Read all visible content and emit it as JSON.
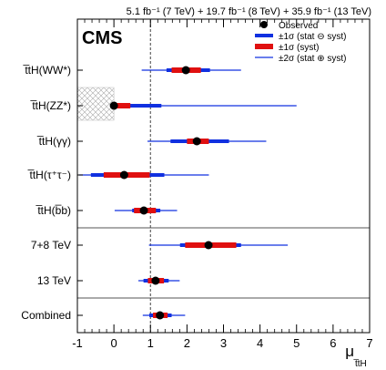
{
  "lumi_text": "5.1 fb⁻¹ (7 TeV) + 19.7 fb⁻¹ (8 TeV) + 35.9 fb⁻¹ (13 TeV)",
  "experiment": "CMS",
  "colors": {
    "stat": "#1030e0",
    "syst": "#e01010",
    "total": "#1030e0",
    "marker": "#000000",
    "sm_line": "#444444",
    "hatch": "#999999"
  },
  "chart_data": {
    "type": "forest",
    "xlabel": "μ",
    "xlabel_sub": "t̅tH",
    "xlim": [
      -1,
      7
    ],
    "xticks": [
      -1,
      0,
      1,
      2,
      3,
      4,
      5,
      6,
      7
    ],
    "sm_reference": 1,
    "legend": {
      "position": "top-right",
      "entries": [
        {
          "kind": "marker",
          "label": "Observed"
        },
        {
          "kind": "stat",
          "label": "±1σ (stat ⊖ syst)"
        },
        {
          "kind": "syst",
          "label": "±1σ (syst)"
        },
        {
          "kind": "total",
          "label": "±2σ (stat ⊕ syst)"
        }
      ]
    },
    "rows": [
      {
        "label": "t̅tH(WW*)",
        "value": 1.97,
        "stat1": [
          1.44,
          2.63
        ],
        "syst1": [
          1.58,
          2.38
        ],
        "tot2": [
          0.76,
          3.48
        ]
      },
      {
        "label": "t̅tH(ZZ*)",
        "value": 0.0,
        "stat1": [
          0.0,
          1.3
        ],
        "syst1": [
          0.0,
          0.45
        ],
        "tot2": [
          0.0,
          5.0
        ],
        "hatched_region": [
          -1,
          0
        ]
      },
      {
        "label": "t̅tH(γγ)",
        "value": 2.27,
        "stat1": [
          1.55,
          3.15
        ],
        "syst1": [
          2.0,
          2.6
        ],
        "tot2": [
          0.92,
          4.17
        ]
      },
      {
        "label": "t̅tH(τ⁺τ⁻)",
        "value": 0.28,
        "stat1": [
          -0.63,
          1.38
        ],
        "syst1": [
          -0.28,
          0.98
        ],
        "tot2": [
          -0.95,
          2.6
        ]
      },
      {
        "label": "t̅tH(b̅b)",
        "value": 0.82,
        "stat1": [
          0.5,
          1.27
        ],
        "syst1": [
          0.55,
          1.15
        ],
        "tot2": [
          0.02,
          1.73
        ]
      },
      {
        "label": "7+8 TeV",
        "value": 2.59,
        "stat1": [
          1.81,
          3.48
        ],
        "syst1": [
          1.95,
          3.35
        ],
        "tot2": [
          0.96,
          4.76
        ]
      },
      {
        "label": "13 TeV",
        "value": 1.14,
        "stat1": [
          0.81,
          1.5
        ],
        "syst1": [
          0.93,
          1.37
        ],
        "tot2": [
          0.67,
          1.8
        ]
      },
      {
        "label": "Combined",
        "value": 1.26,
        "stat1": [
          0.97,
          1.58
        ],
        "syst1": [
          1.07,
          1.47
        ],
        "tot2": [
          0.79,
          1.95
        ]
      }
    ]
  }
}
